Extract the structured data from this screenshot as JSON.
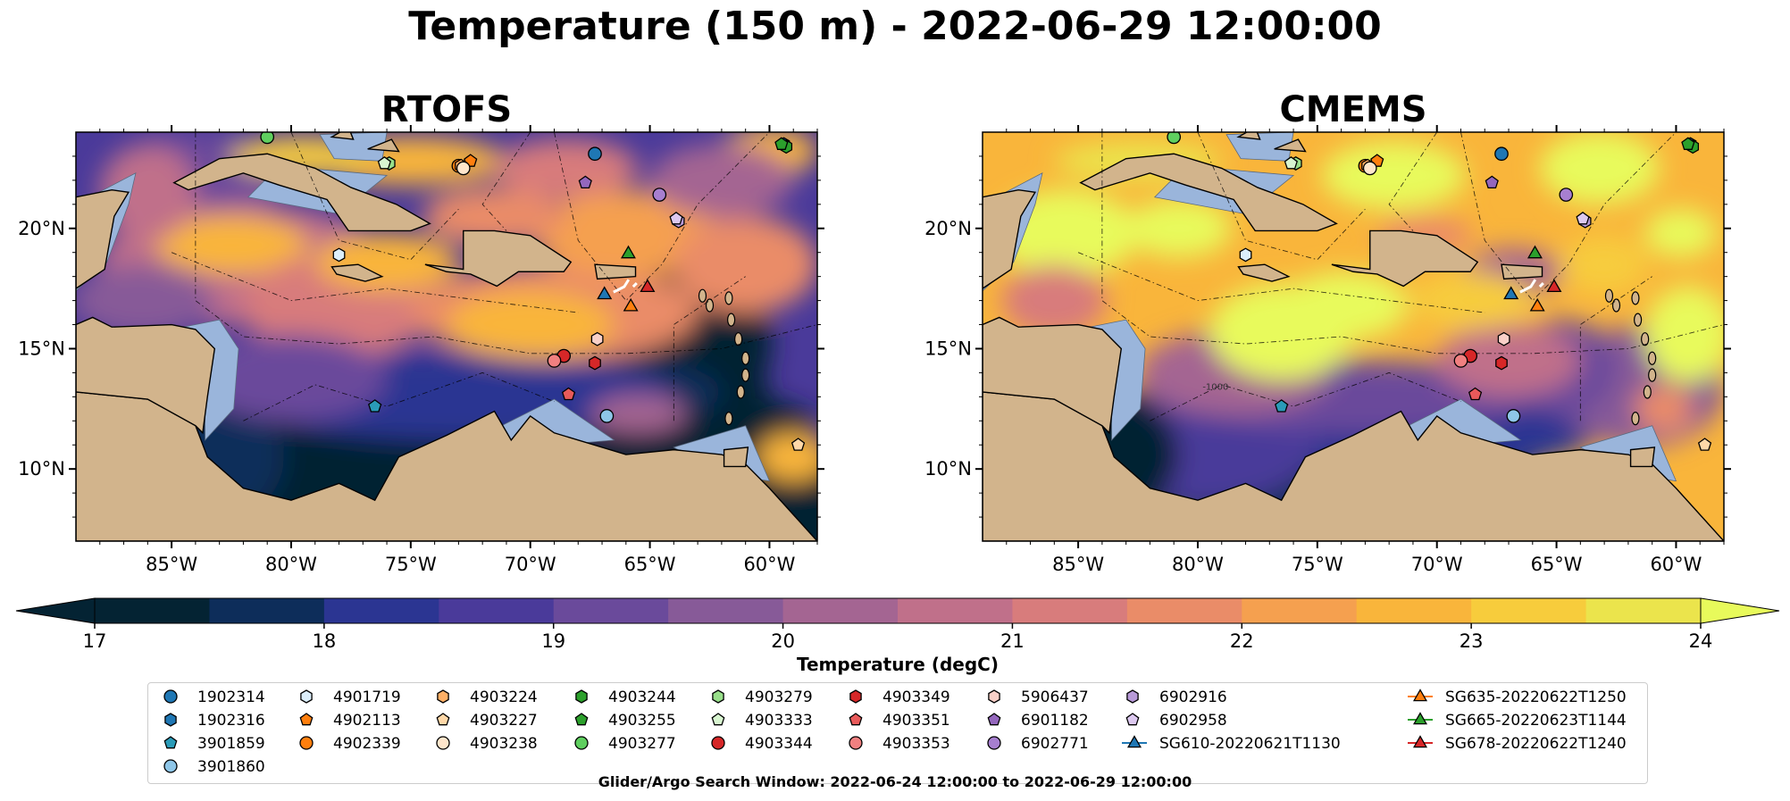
{
  "title": "Temperature (150 m) - 2022-06-29 12:00:00",
  "panels": [
    {
      "title": "RTOFS",
      "key": "rtofs"
    },
    {
      "title": "CMEMS",
      "key": "cmems"
    }
  ],
  "axes": {
    "lon_ticks": [
      "85°W",
      "80°W",
      "75°W",
      "70°W",
      "65°W",
      "60°W"
    ],
    "lat_ticks": [
      "20°N",
      "15°N",
      "10°N"
    ],
    "lon_range": [
      -89,
      -58
    ],
    "lat_range": [
      7,
      24
    ],
    "contour_label": "-1000"
  },
  "colorbar": {
    "label": "Temperature (degC)",
    "ticks": [
      "17",
      "18",
      "19",
      "20",
      "21",
      "22",
      "23",
      "24"
    ],
    "min": 17,
    "max": 24,
    "step": 0.5,
    "extend": "both",
    "colormap": "thermal"
  },
  "chart_data": {
    "type": "heatmap",
    "variable": "Temperature",
    "depth": "150 m",
    "time": "2022-06-29 12:00:00",
    "units": "degC",
    "panels": [
      "RTOFS",
      "CMEMS"
    ],
    "argo_floats": [
      {
        "id": "1902314",
        "lon": -67.3,
        "lat": 23.1,
        "marker": "circle",
        "color": "#1f77b4"
      },
      {
        "id": "1902316",
        "lon": -59.4,
        "lat": 23.5,
        "marker": "hexagon",
        "color": "#1f77b4"
      },
      {
        "id": "3901859",
        "lon": -76.5,
        "lat": 12.6,
        "marker": "pentagon",
        "color": "#2a9bb8"
      },
      {
        "id": "3901860",
        "lon": -66.8,
        "lat": 12.2,
        "marker": "circle",
        "color": "#8ec6e8"
      },
      {
        "id": "4901719",
        "lon": -78.0,
        "lat": 18.9,
        "marker": "hexagon",
        "color": "#dceefa"
      },
      {
        "id": "4902113",
        "lon": -72.5,
        "lat": 22.8,
        "marker": "pentagon",
        "color": "#ff7f0e"
      },
      {
        "id": "4902339",
        "lon": -73.0,
        "lat": 22.6,
        "marker": "circle",
        "color": "#ff7f0e"
      },
      {
        "id": "4903224",
        "lon": -72.9,
        "lat": 22.6,
        "marker": "hexagon",
        "color": "#ffb066"
      },
      {
        "id": "4903227",
        "lon": -58.8,
        "lat": 11.0,
        "marker": "pentagon",
        "color": "#ffd8a8"
      },
      {
        "id": "4903238",
        "lon": -72.8,
        "lat": 22.5,
        "marker": "circle",
        "color": "#ffe6cc"
      },
      {
        "id": "4903244",
        "lon": -59.3,
        "lat": 23.4,
        "marker": "hexagon",
        "color": "#2ca02c"
      },
      {
        "id": "4903255",
        "lon": -59.5,
        "lat": 23.5,
        "marker": "pentagon",
        "color": "#2ca02c"
      },
      {
        "id": "4903277",
        "lon": -81.0,
        "lat": 23.8,
        "marker": "circle",
        "color": "#5fcf5f"
      },
      {
        "id": "4903279",
        "lon": -75.9,
        "lat": 22.7,
        "marker": "hexagon",
        "color": "#98df8a"
      },
      {
        "id": "4903333",
        "lon": -76.1,
        "lat": 22.7,
        "marker": "pentagon",
        "color": "#d8f5d0"
      },
      {
        "id": "4903344",
        "lon": -68.6,
        "lat": 14.7,
        "marker": "circle",
        "color": "#d62728"
      },
      {
        "id": "4903349",
        "lon": -67.3,
        "lat": 14.4,
        "marker": "hexagon",
        "color": "#d62728"
      },
      {
        "id": "4903351",
        "lon": -68.4,
        "lat": 13.1,
        "marker": "pentagon",
        "color": "#e85a5a"
      },
      {
        "id": "4903353",
        "lon": -69.0,
        "lat": 14.5,
        "marker": "circle",
        "color": "#f08080"
      },
      {
        "id": "5906437",
        "lon": -67.2,
        "lat": 15.4,
        "marker": "hexagon",
        "color": "#f9d0c8"
      },
      {
        "id": "6901182",
        "lon": -67.7,
        "lat": 21.9,
        "marker": "pentagon",
        "color": "#9467bd"
      },
      {
        "id": "6902771",
        "lon": -64.6,
        "lat": 21.4,
        "marker": "circle",
        "color": "#a77fd0"
      },
      {
        "id": "6902916",
        "lon": -63.8,
        "lat": 20.3,
        "marker": "hexagon",
        "color": "#b89ad8"
      },
      {
        "id": "6902958",
        "lon": -63.9,
        "lat": 20.4,
        "marker": "pentagon",
        "color": "#ddc9f0"
      }
    ],
    "gliders": [
      {
        "id": "SG610-20220621T1130",
        "lon": -66.9,
        "lat": 17.3,
        "color": "#1f77b4"
      },
      {
        "id": "SG635-20220622T1250",
        "lon": -65.8,
        "lat": 16.8,
        "color": "#ff7f0e"
      },
      {
        "id": "SG665-20220623T1144",
        "lon": -65.9,
        "lat": 19.0,
        "color": "#2ca02c"
      },
      {
        "id": "SG678-20220622T1240",
        "lon": -65.1,
        "lat": 17.6,
        "color": "#d62728"
      }
    ]
  },
  "legend": {
    "columns": [
      [
        {
          "label": "1902314",
          "marker": "circle",
          "color": "#1f77b4"
        },
        {
          "label": "1902316",
          "marker": "hexagon",
          "color": "#1f77b4"
        },
        {
          "label": "3901859",
          "marker": "pentagon",
          "color": "#2a9bb8"
        },
        {
          "label": "3901860",
          "marker": "circle",
          "color": "#8ec6e8"
        }
      ],
      [
        {
          "label": "4901719",
          "marker": "hexagon",
          "color": "#dceefa"
        },
        {
          "label": "4902113",
          "marker": "pentagon",
          "color": "#ff7f0e"
        },
        {
          "label": "4902339",
          "marker": "circle",
          "color": "#ff7f0e"
        }
      ],
      [
        {
          "label": "4903224",
          "marker": "hexagon",
          "color": "#ffb066"
        },
        {
          "label": "4903227",
          "marker": "pentagon",
          "color": "#ffd8a8"
        },
        {
          "label": "4903238",
          "marker": "circle",
          "color": "#ffe6cc"
        }
      ],
      [
        {
          "label": "4903244",
          "marker": "hexagon",
          "color": "#2ca02c"
        },
        {
          "label": "4903255",
          "marker": "pentagon",
          "color": "#2ca02c"
        },
        {
          "label": "4903277",
          "marker": "circle",
          "color": "#5fcf5f"
        }
      ],
      [
        {
          "label": "4903279",
          "marker": "hexagon",
          "color": "#98df8a"
        },
        {
          "label": "4903333",
          "marker": "pentagon",
          "color": "#d8f5d0"
        },
        {
          "label": "4903344",
          "marker": "circle",
          "color": "#d62728"
        }
      ],
      [
        {
          "label": "4903349",
          "marker": "hexagon",
          "color": "#d62728"
        },
        {
          "label": "4903351",
          "marker": "pentagon",
          "color": "#e85a5a"
        },
        {
          "label": "4903353",
          "marker": "circle",
          "color": "#f08080"
        }
      ],
      [
        {
          "label": "5906437",
          "marker": "hexagon",
          "color": "#f9d0c8"
        },
        {
          "label": "6901182",
          "marker": "pentagon",
          "color": "#9467bd"
        },
        {
          "label": "6902771",
          "marker": "circle",
          "color": "#a77fd0"
        }
      ],
      [
        {
          "label": "6902916",
          "marker": "hexagon",
          "color": "#b89ad8"
        },
        {
          "label": "6902958",
          "marker": "pentagon",
          "color": "#ddc9f0"
        },
        {
          "label": "SG610-20220621T1130",
          "marker": "triangle-line",
          "color": "#1f77b4"
        }
      ],
      [
        {
          "label": "SG635-20220622T1250",
          "marker": "triangle-line",
          "color": "#ff7f0e"
        },
        {
          "label": "SG665-20220623T1144",
          "marker": "triangle-line",
          "color": "#2ca02c"
        },
        {
          "label": "SG678-20220622T1240",
          "marker": "triangle-line",
          "color": "#d62728"
        }
      ]
    ]
  },
  "footer": "Glider/Argo Search Window: 2022-06-24 12:00:00 to 2022-06-29 12:00:00",
  "colors": {
    "land": "#d2b48c",
    "shelf": "#9ab5db",
    "thermal": [
      "#042333",
      "#0d2d5a",
      "#2b3592",
      "#4a3a9a",
      "#6a4a9b",
      "#875a98",
      "#a46592",
      "#c0708a",
      "#d87c7c",
      "#ea8c68",
      "#f5a04f",
      "#f9b53b",
      "#f7cc3c",
      "#ebe44c",
      "#e8fa5b"
    ]
  }
}
